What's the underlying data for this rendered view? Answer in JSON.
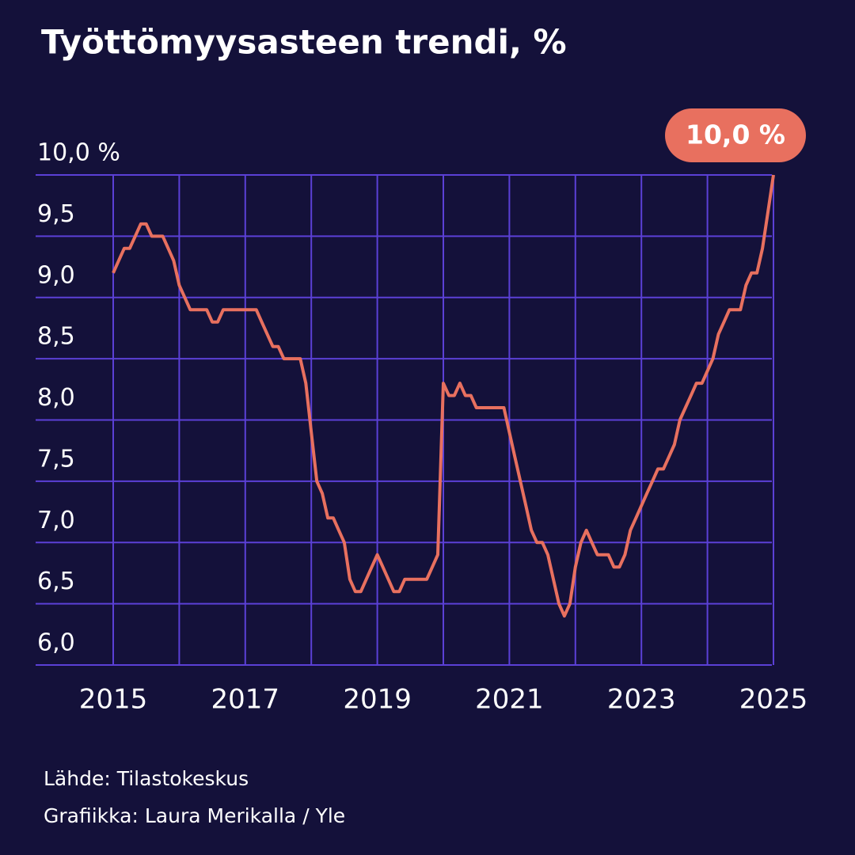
{
  "chart_data": {
    "type": "line",
    "title": "Työttömyysasteen trendi, %",
    "categories": [
      "2015",
      null,
      null,
      null,
      null,
      null,
      null,
      null,
      null,
      null,
      null,
      null,
      null,
      null,
      null,
      null,
      null,
      null,
      null,
      null,
      null,
      null,
      null,
      null,
      "2017",
      null,
      null,
      null,
      null,
      null,
      null,
      null,
      null,
      null,
      null,
      null,
      null,
      null,
      null,
      null,
      null,
      null,
      null,
      null,
      null,
      null,
      null,
      null,
      "2019",
      null,
      null,
      null,
      null,
      null,
      null,
      null,
      null,
      null,
      null,
      null,
      null,
      null,
      null,
      null,
      null,
      null,
      null,
      null,
      null,
      null,
      null,
      null,
      "2021",
      null,
      null,
      null,
      null,
      null,
      null,
      null,
      null,
      null,
      null,
      null,
      null,
      null,
      null,
      null,
      null,
      null,
      null,
      null,
      null,
      null,
      null,
      null,
      "2023",
      null,
      null,
      null,
      null,
      null,
      null,
      null,
      null,
      null,
      null,
      null,
      null,
      null,
      null,
      null,
      null,
      null,
      null,
      null,
      null,
      null,
      null,
      null,
      "2025"
    ],
    "values": [
      9.2,
      9.3,
      9.4,
      9.4,
      9.5,
      9.6,
      9.6,
      9.5,
      9.5,
      9.5,
      9.4,
      9.3,
      9.1,
      9.0,
      8.9,
      8.9,
      8.9,
      8.9,
      8.8,
      8.8,
      8.9,
      8.9,
      8.9,
      8.9,
      8.9,
      8.9,
      8.9,
      8.8,
      8.7,
      8.6,
      8.6,
      8.5,
      8.5,
      8.5,
      8.5,
      8.3,
      7.9,
      7.5,
      7.4,
      7.2,
      7.2,
      7.1,
      7.0,
      6.7,
      6.6,
      6.6,
      6.7,
      6.8,
      6.9,
      6.8,
      6.7,
      6.6,
      6.6,
      6.7,
      6.7,
      6.7,
      6.7,
      6.7,
      6.8,
      6.9,
      8.3,
      8.2,
      8.2,
      8.3,
      8.2,
      8.2,
      8.1,
      8.1,
      8.1,
      8.1,
      8.1,
      8.1,
      7.9,
      7.7,
      7.5,
      7.3,
      7.1,
      7.0,
      7.0,
      6.9,
      6.7,
      6.5,
      6.4,
      6.5,
      6.8,
      7.0,
      7.1,
      7.0,
      6.9,
      6.9,
      6.9,
      6.8,
      6.8,
      6.9,
      7.1,
      7.2,
      7.3,
      7.4,
      7.5,
      7.6,
      7.6,
      7.7,
      7.8,
      8.0,
      8.1,
      8.2,
      8.3,
      8.3,
      8.4,
      8.5,
      8.7,
      8.8,
      8.9,
      8.9,
      8.9,
      9.1,
      9.2,
      9.2,
      9.4,
      9.7,
      10.0
    ],
    "color": "#e8705f",
    "end_label": "10,0 %",
    "ylim": [
      6.0,
      10.0
    ],
    "yticks": [
      {
        "value": 6.0,
        "label": "6,0"
      },
      {
        "value": 6.5,
        "label": "6,5"
      },
      {
        "value": 7.0,
        "label": "7,0"
      },
      {
        "value": 7.5,
        "label": "7,5"
      },
      {
        "value": 8.0,
        "label": "8,0"
      },
      {
        "value": 8.5,
        "label": "8,5"
      },
      {
        "value": 9.0,
        "label": "9,0"
      },
      {
        "value": 9.5,
        "label": "9,5"
      },
      {
        "value": 10.0,
        "label": "10,0 %"
      }
    ],
    "grid": true,
    "source": "Lähde: Tilastokeskus",
    "credit": "Grafiikka: Laura Merikalla / Yle"
  }
}
